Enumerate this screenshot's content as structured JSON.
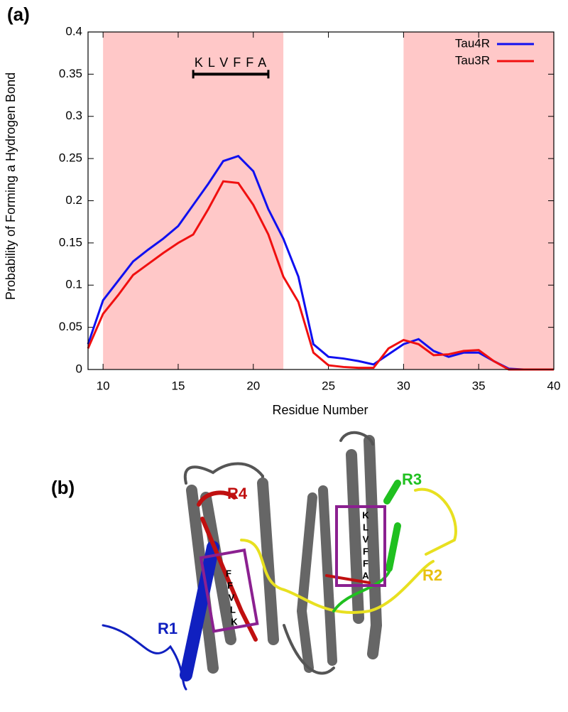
{
  "chart_data": {
    "type": "line",
    "panel_label": "(a)",
    "xlabel": "Residue Number",
    "ylabel": "Probability of Forming a Hydrogen Bond",
    "x": [
      9,
      10,
      11,
      12,
      13,
      14,
      15,
      16,
      17,
      18,
      19,
      20,
      21,
      22,
      23,
      24,
      25,
      26,
      27,
      28,
      29,
      30,
      31,
      32,
      33,
      34,
      35,
      36,
      37,
      38,
      39,
      40
    ],
    "series": [
      {
        "name": "Tau4R",
        "color": "#1010f0",
        "values": [
          0.03,
          0.082,
          0.105,
          0.128,
          0.142,
          0.155,
          0.17,
          0.195,
          0.22,
          0.247,
          0.253,
          0.235,
          0.19,
          0.155,
          0.11,
          0.03,
          0.015,
          0.013,
          0.01,
          0.006,
          0.018,
          0.03,
          0.036,
          0.022,
          0.015,
          0.02,
          0.02,
          0.01,
          0.001,
          0,
          0,
          0
        ]
      },
      {
        "name": "Tau3R",
        "color": "#f01010",
        "values": [
          0.025,
          0.066,
          0.088,
          0.112,
          0.125,
          0.138,
          0.15,
          0.16,
          0.19,
          0.223,
          0.221,
          0.195,
          0.16,
          0.11,
          0.08,
          0.02,
          0.005,
          0.003,
          0.002,
          0.002,
          0.025,
          0.035,
          0.03,
          0.017,
          0.018,
          0.022,
          0.023,
          0.01,
          0,
          0,
          0,
          0
        ]
      }
    ],
    "xlim": [
      9,
      40
    ],
    "ylim": [
      0,
      0.4
    ],
    "xticks": [
      10,
      15,
      20,
      25,
      30,
      35,
      40
    ],
    "yticks": [
      0,
      0.05,
      0.1,
      0.15,
      0.2,
      0.25,
      0.3,
      0.35,
      0.4
    ],
    "shaded": [
      [
        10,
        22
      ],
      [
        30,
        40
      ]
    ],
    "shade_color": "#ffc8c8",
    "annotation": {
      "text": "K L V F F A",
      "x": [
        16,
        21
      ],
      "y": 0.35
    },
    "legend": "upper right"
  },
  "panel_b": {
    "panel_label": "(b)",
    "labels": [
      "R1",
      "R2",
      "R3",
      "R4"
    ],
    "box_left": [
      "F",
      "F",
      "V",
      "L",
      "K"
    ],
    "box_right": [
      "K",
      "L",
      "V",
      "F",
      "F",
      "A"
    ]
  }
}
